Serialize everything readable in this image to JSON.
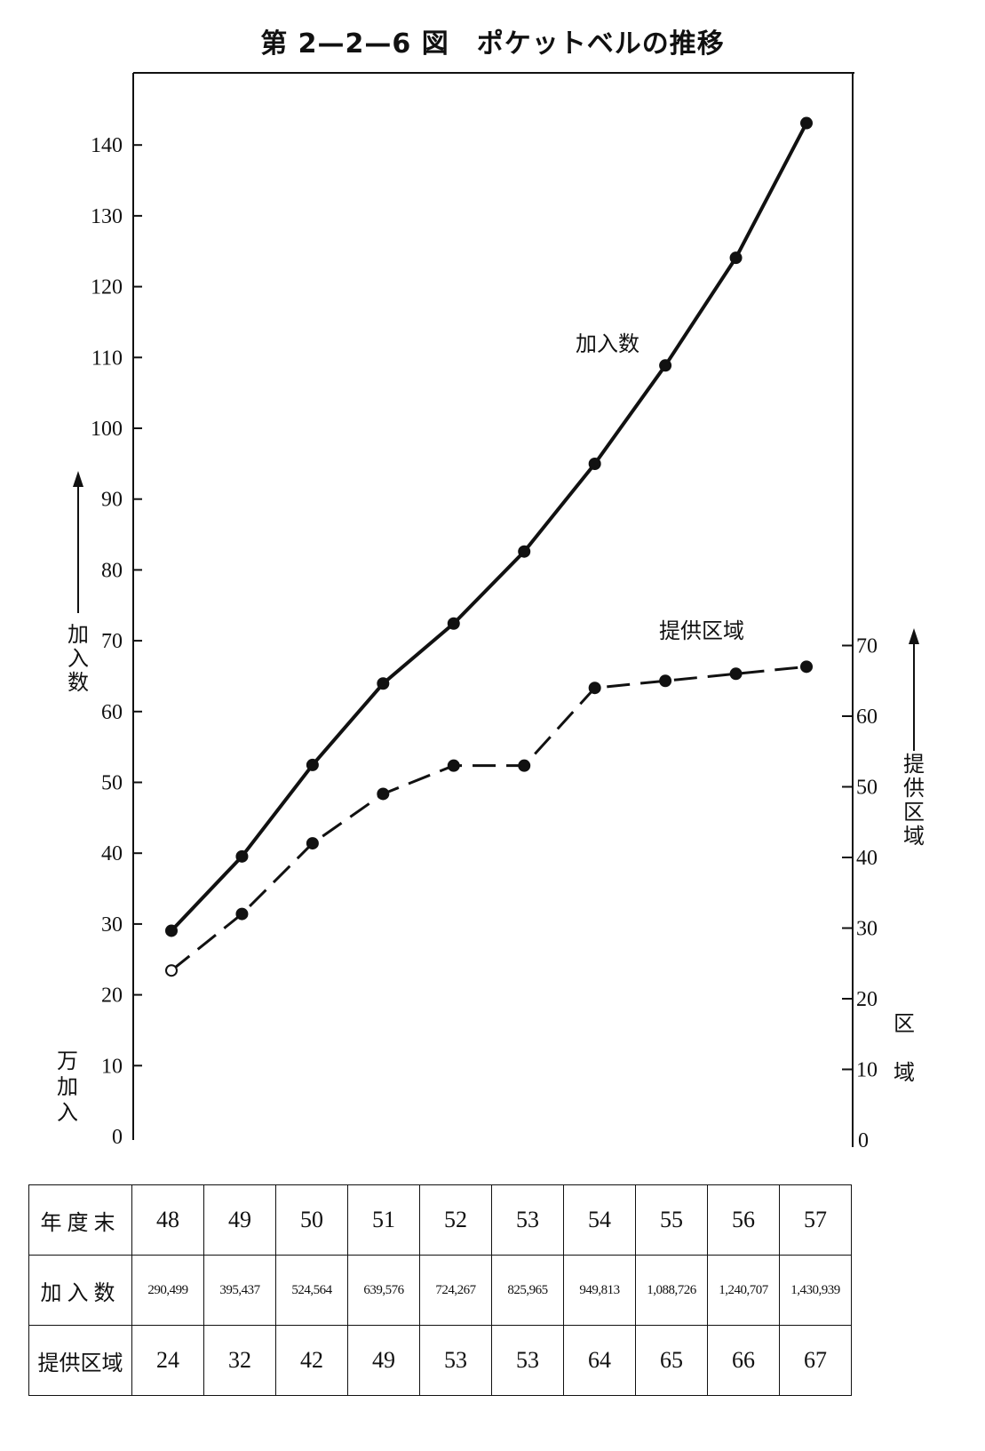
{
  "title": "第 2—2—6 図　ポケットベルの推移",
  "chart_data": {
    "type": "line",
    "categories": [
      "48",
      "49",
      "50",
      "51",
      "52",
      "53",
      "54",
      "55",
      "56",
      "57"
    ],
    "series": [
      {
        "name": "加入数",
        "axis": "left",
        "style": "solid",
        "values": [
          29.0499,
          39.5437,
          52.4564,
          63.9576,
          72.4267,
          82.5965,
          94.9813,
          108.8726,
          124.0707,
          143.0939
        ]
      },
      {
        "name": "提供区域",
        "axis": "right",
        "style": "dashed",
        "values": [
          24,
          32,
          42,
          49,
          53,
          53,
          64,
          65,
          66,
          67
        ]
      }
    ],
    "left_axis": {
      "ylim": [
        0,
        140
      ],
      "ticks": [
        "0",
        "10",
        "20",
        "30",
        "40",
        "50",
        "60",
        "70",
        "80",
        "90",
        "100",
        "110",
        "120",
        "130",
        "140"
      ],
      "title": "加入数",
      "unit": "万加入"
    },
    "right_axis": {
      "ylim": [
        0,
        70
      ],
      "ticks": [
        "0",
        "10",
        "20",
        "30",
        "40",
        "50",
        "60",
        "70"
      ],
      "title": "提供区域",
      "unit": "区域"
    },
    "grid": false
  },
  "table": {
    "row_headers": [
      "年度末",
      "加入数",
      "提供区域"
    ],
    "years": [
      "48",
      "49",
      "50",
      "51",
      "52",
      "53",
      "54",
      "55",
      "56",
      "57"
    ],
    "subscribers": [
      "290,499",
      "395,437",
      "524,564",
      "639,576",
      "724,267",
      "825,965",
      "949,813",
      "1,088,726",
      "1,240,707",
      "1,430,939"
    ],
    "areas": [
      "24",
      "32",
      "42",
      "49",
      "53",
      "53",
      "64",
      "65",
      "66",
      "67"
    ]
  }
}
